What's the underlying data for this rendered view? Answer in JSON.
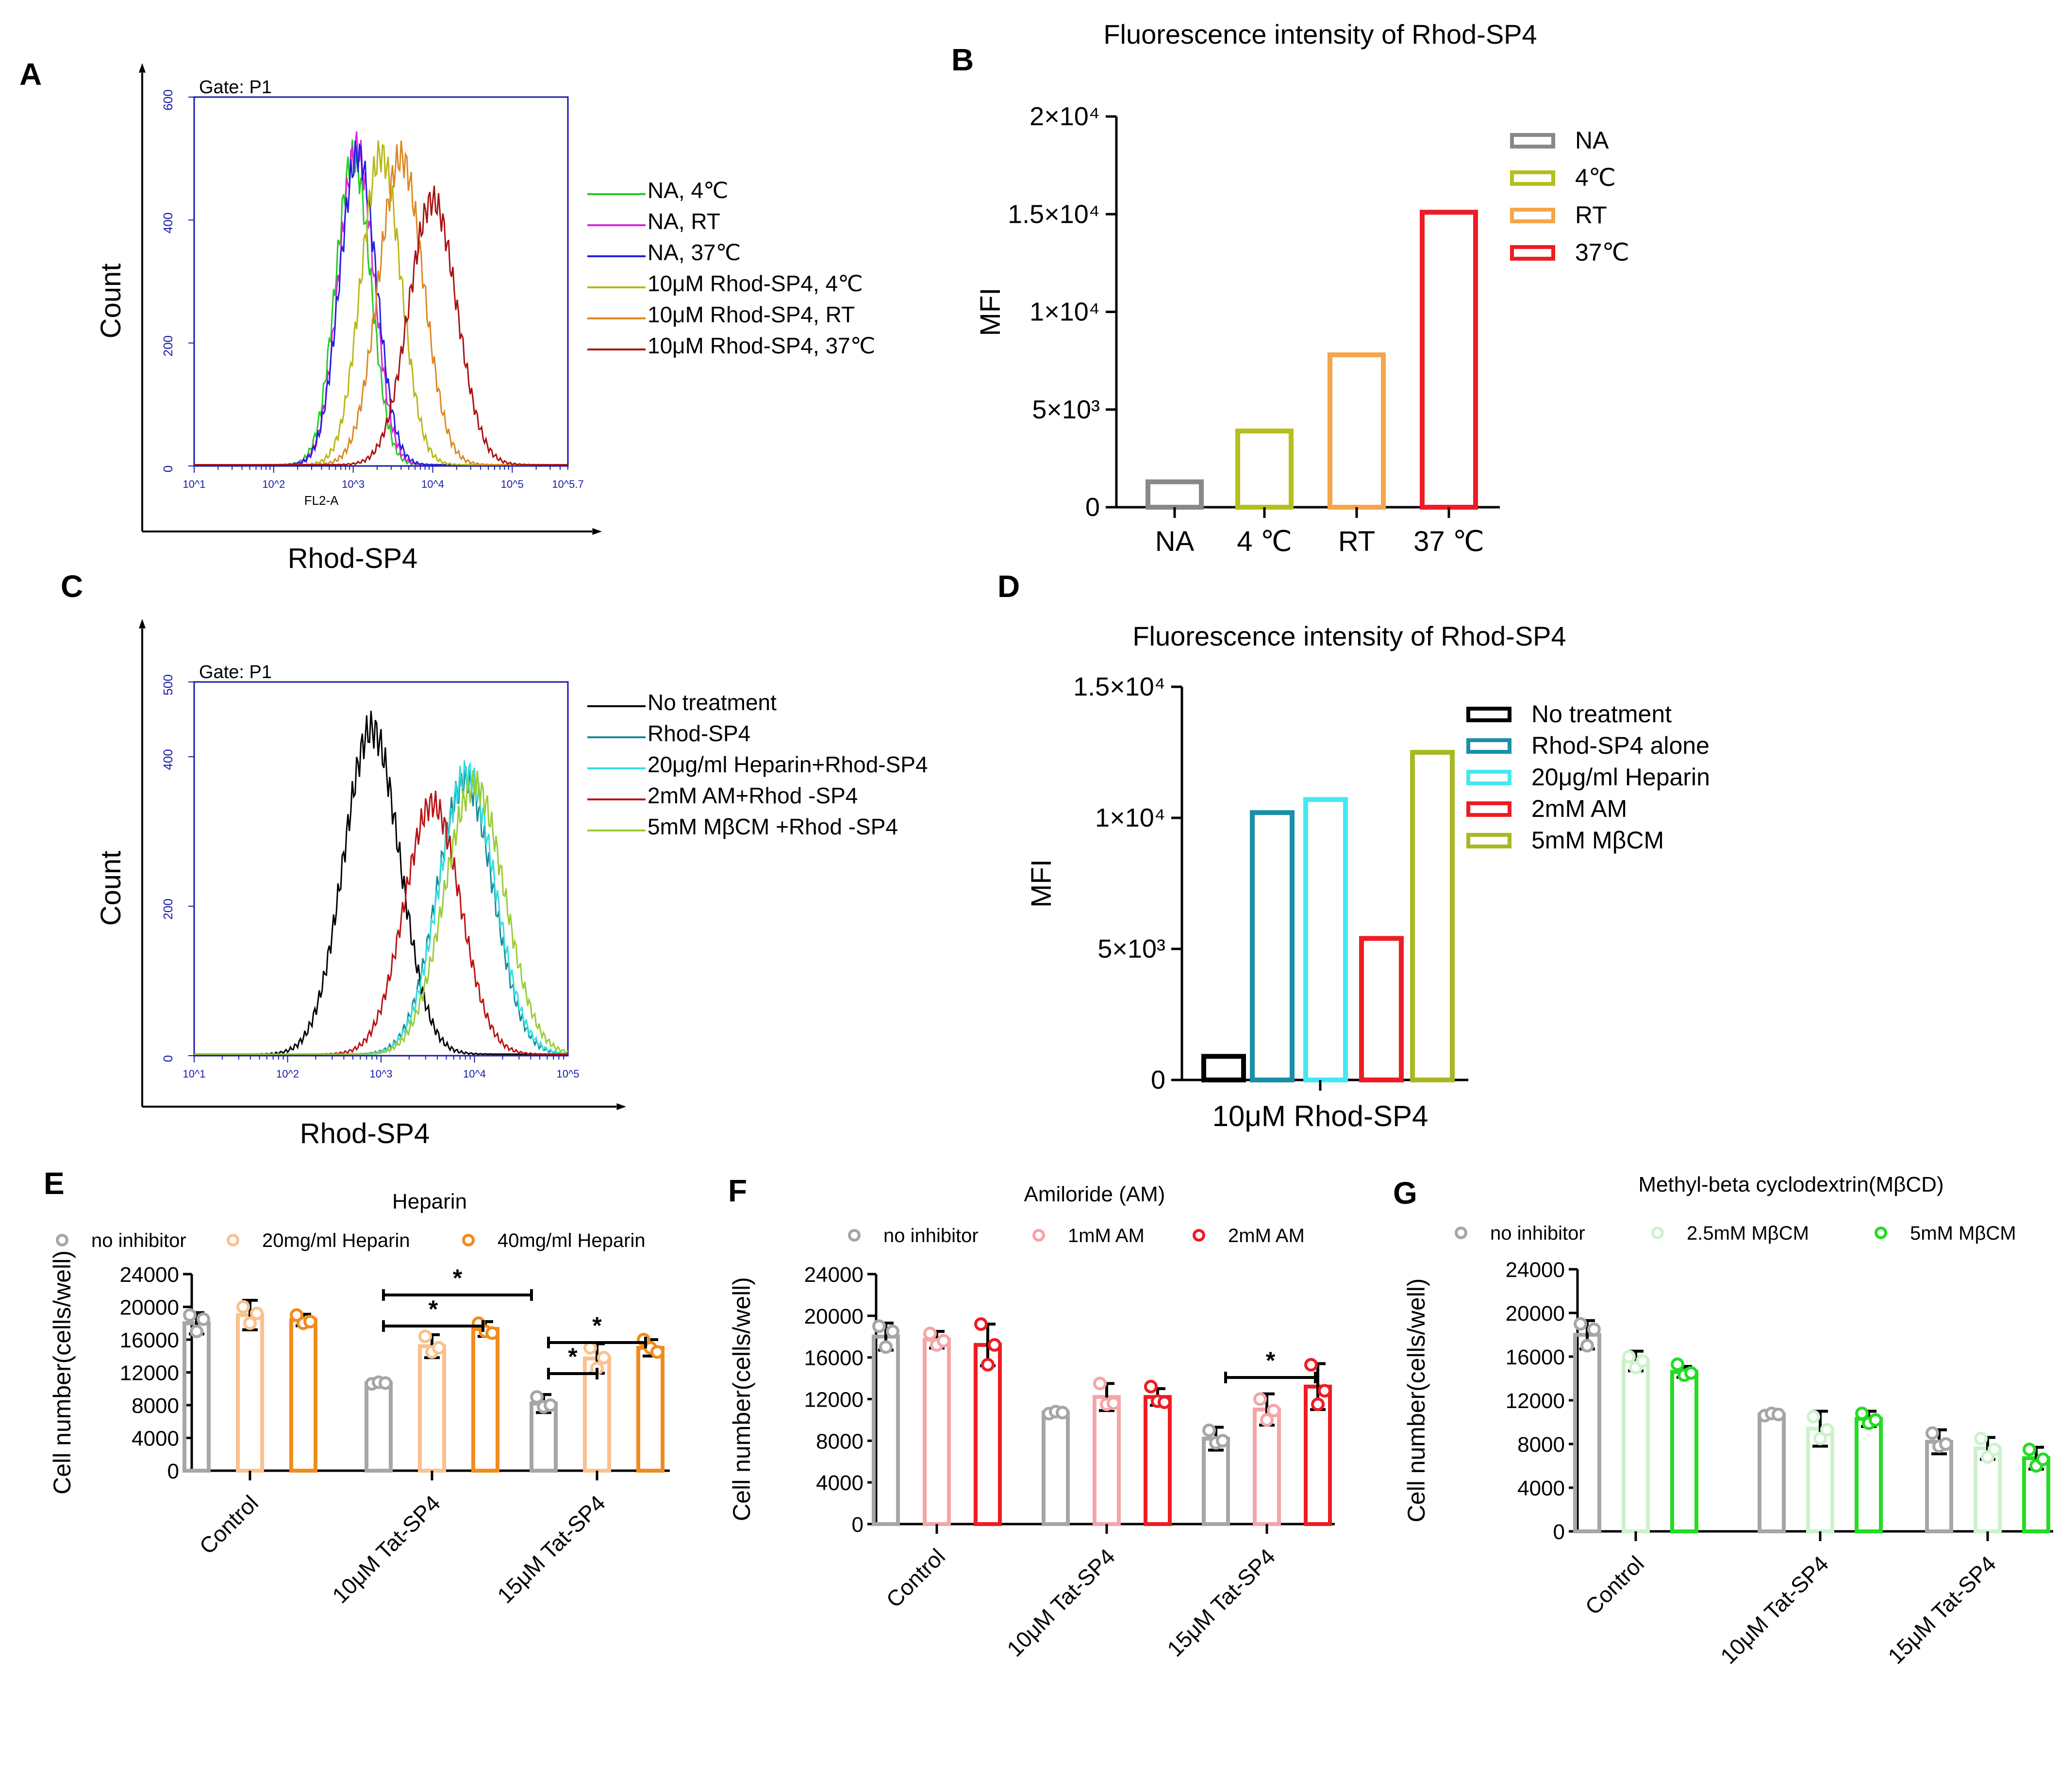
{
  "figure": {
    "panels": [
      {
        "letter": "A",
        "title": ""
      },
      {
        "letter": "B",
        "title": "Fluorescence intensity of Rhod-SP4"
      },
      {
        "letter": "C",
        "title": ""
      },
      {
        "letter": "D",
        "title": "Fluorescence intensity of Rhod-SP4"
      },
      {
        "letter": "E",
        "title": "Heparin"
      },
      {
        "letter": "F",
        "title": "Amiloride (AM)"
      },
      {
        "letter": "G",
        "title": "Methyl-beta cyclodextrin(MβCD)"
      }
    ]
  },
  "chart_data": [
    {
      "id": "A",
      "type": "line",
      "title": "",
      "gate_label": "Gate: P1",
      "xlabel": "Rhod-SP4",
      "xlabel_inner": "FL2-A",
      "ylabel": "Count",
      "x_scale": "log",
      "x_ticks": [
        "10^1",
        "10^2",
        "10^3",
        "10^4",
        "10^5",
        "10^5.7"
      ],
      "y_ticks": [
        "0",
        "200",
        "400",
        "600"
      ],
      "ylim": [
        0,
        600
      ],
      "xlim_log10": [
        1,
        5.7
      ],
      "series": [
        {
          "name": "NA, 4℃",
          "color": "#22cc22",
          "peak_log10": 3.0,
          "peak_count": 500,
          "width": 0.22
        },
        {
          "name": "NA, RT",
          "color": "#dd22dd",
          "peak_log10": 3.04,
          "peak_count": 515,
          "width": 0.22
        },
        {
          "name": "NA, 37℃",
          "color": "#2222dd",
          "peak_log10": 3.06,
          "peak_count": 505,
          "width": 0.23
        },
        {
          "name": "10μM Rhod-SP4, 4℃",
          "color": "#b8b814",
          "peak_log10": 3.35,
          "peak_count": 505,
          "width": 0.25
        },
        {
          "name": "10μM Rhod-SP4, RT",
          "color": "#dd8822",
          "peak_log10": 3.6,
          "peak_count": 500,
          "width": 0.28
        },
        {
          "name": "10μM Rhod-SP4, 37℃",
          "color": "#aa1111",
          "peak_log10": 4.0,
          "peak_count": 430,
          "width": 0.3
        }
      ]
    },
    {
      "id": "B",
      "type": "bar",
      "title": "Fluorescence intensity of Rhod-SP4",
      "xlabel": "",
      "ylabel": "MFI",
      "ylim": [
        0,
        20000
      ],
      "y_ticks": [
        "0",
        "5×10³",
        "1×10⁴",
        "1.5×10⁴",
        "2×10⁴"
      ],
      "categories": [
        "NA",
        "4 ℃",
        "RT",
        "37 ℃"
      ],
      "legend": [
        "NA",
        "4℃",
        "RT",
        "37℃"
      ],
      "colors": [
        "#888888",
        "#b5bf1e",
        "#f5a54a",
        "#ee1c24"
      ],
      "values": [
        1300,
        3900,
        7800,
        15100
      ]
    },
    {
      "id": "C",
      "type": "line",
      "title": "",
      "gate_label": "Gate: P1",
      "xlabel": "Rhod-SP4",
      "ylabel": "Count",
      "x_scale": "log",
      "x_ticks": [
        "10^1",
        "10^2",
        "10^3",
        "10^4",
        "10^5"
      ],
      "y_ticks": [
        "0",
        "200",
        "400",
        "500"
      ],
      "ylim": [
        0,
        500
      ],
      "xlim_log10": [
        1,
        5
      ],
      "series": [
        {
          "name": "No treatment",
          "color": "#000000",
          "peak_log10": 2.9,
          "peak_count": 435,
          "width": 0.3
        },
        {
          "name": "Rhod-SP4",
          "color": "#1a8a99",
          "peak_log10": 3.9,
          "peak_count": 365,
          "width": 0.3
        },
        {
          "name": "20μg/ml Heparin+Rhod-SP4",
          "color": "#33dddd",
          "peak_log10": 3.92,
          "peak_count": 375,
          "width": 0.3
        },
        {
          "name": "2mM AM+Rhod -SP4",
          "color": "#bb1111",
          "peak_log10": 3.55,
          "peak_count": 335,
          "width": 0.3
        },
        {
          "name": "5mM MβCM +Rhod -SP4",
          "color": "#99cc33",
          "peak_log10": 4.0,
          "peak_count": 360,
          "width": 0.32
        }
      ]
    },
    {
      "id": "D",
      "type": "bar",
      "title": "Fluorescence intensity of Rhod-SP4",
      "xlabel": "10μM Rhod-SP4",
      "ylabel": "MFI",
      "ylim": [
        0,
        15000
      ],
      "y_ticks": [
        "0",
        "5×10³",
        "1×10⁴",
        "1.5×10⁴"
      ],
      "categories": [
        "No treatment",
        "Rhod-SP4 alone",
        "20μg/ml Heparin",
        "2mM AM",
        "5mM MβCM"
      ],
      "colors": [
        "#000000",
        "#1a8fa8",
        "#44e8f2",
        "#ee1c24",
        "#a7b824"
      ],
      "values": [
        900,
        10200,
        10700,
        5400,
        12500
      ]
    },
    {
      "id": "E",
      "type": "bar",
      "title": "Heparin",
      "ylabel": "Cell number(cells/well)",
      "ylim": [
        0,
        24000
      ],
      "y_ticks": [
        "0",
        "4000",
        "8000",
        "12000",
        "16000",
        "20000",
        "24000"
      ],
      "categories": [
        "Control",
        "10μM Tat-SP4",
        "15μM Tat-SP4"
      ],
      "series": [
        {
          "name": "no inhibitor",
          "color": "#a6a6a6",
          "values": [
            18000,
            10700,
            8200
          ],
          "sd": [
            1300,
            300,
            1100
          ],
          "points": [
            [
              19000,
              17000,
              18500
            ],
            [
              10600,
              10800,
              10700
            ],
            [
              9000,
              7800,
              8000
            ]
          ]
        },
        {
          "name": "20mg/ml Heparin",
          "color": "#f9c28e",
          "values": [
            19000,
            15200,
            13700
          ],
          "sd": [
            1800,
            1400,
            1800
          ],
          "points": [
            [
              20000,
              18000,
              19200
            ],
            [
              16400,
              14500,
              15000
            ],
            [
              15000,
              12500,
              13800
            ]
          ]
        },
        {
          "name": "40mg/ml Heparin",
          "color": "#f08c1e",
          "values": [
            18400,
            17300,
            15000
          ],
          "sd": [
            700,
            900,
            1000
          ],
          "points": [
            [
              19000,
              18000,
              18200
            ],
            [
              18000,
              17000,
              16800
            ],
            [
              16000,
              15000,
              14500
            ]
          ]
        }
      ],
      "annotations": [
        "*",
        "*",
        "*",
        "*"
      ]
    },
    {
      "id": "F",
      "type": "bar",
      "title": "Amiloride (AM)",
      "ylabel": "Cell number(cells/well)",
      "ylim": [
        0,
        24000
      ],
      "y_ticks": [
        "0",
        "4000",
        "8000",
        "12000",
        "16000",
        "20000",
        "24000"
      ],
      "categories": [
        "Control",
        "10μM Tat-SP4",
        "15μM Tat-SP4"
      ],
      "series": [
        {
          "name": "no inhibitor",
          "color": "#a6a6a6",
          "values": [
            18000,
            10700,
            8200
          ],
          "sd": [
            1300,
            300,
            1100
          ],
          "points": [
            [
              19000,
              17000,
              18500
            ],
            [
              10600,
              10800,
              10700
            ],
            [
              9000,
              7800,
              8000
            ]
          ]
        },
        {
          "name": "1mM AM",
          "color": "#f4a5a8",
          "values": [
            17700,
            12200,
            11000
          ],
          "sd": [
            800,
            1300,
            1500
          ],
          "points": [
            [
              18300,
              17200,
              17600
            ],
            [
              13500,
              11500,
              11600
            ],
            [
              12000,
              10000,
              10900
            ]
          ]
        },
        {
          "name": "2mM AM",
          "color": "#ee1c24",
          "values": [
            17200,
            12200,
            13200
          ],
          "sd": [
            2000,
            800,
            2200
          ],
          "points": [
            [
              19200,
              15300,
              17200
            ],
            [
              13200,
              11800,
              11700
            ],
            [
              15300,
              11500,
              12800
            ]
          ]
        }
      ],
      "annotations": [
        "*"
      ]
    },
    {
      "id": "G",
      "type": "bar",
      "title": "Methyl-beta cyclodextrin(MβCD)",
      "ylabel": "Cell number(cells/well)",
      "ylim": [
        0,
        24000
      ],
      "y_ticks": [
        "0",
        "4000",
        "8000",
        "12000",
        "16000",
        "20000",
        "24000"
      ],
      "categories": [
        "Control",
        "10μM Tat-SP4",
        "15μM Tat-SP4"
      ],
      "series": [
        {
          "name": "no inhibitor",
          "color": "#a6a6a6",
          "values": [
            18000,
            10700,
            8200
          ],
          "sd": [
            1300,
            300,
            1100
          ],
          "points": [
            [
              19000,
              17000,
              18500
            ],
            [
              10600,
              10800,
              10700
            ],
            [
              9000,
              7800,
              8000
            ]
          ]
        },
        {
          "name": "2.5mM MβCM",
          "color": "#ccf2cc",
          "values": [
            15600,
            9400,
            7600
          ],
          "sd": [
            900,
            1600,
            1000
          ],
          "points": [
            [
              16000,
              15000,
              15600
            ],
            [
              10500,
              8500,
              9300
            ],
            [
              8500,
              6800,
              7500
            ]
          ]
        },
        {
          "name": "5mM MβCM",
          "color": "#22dd22",
          "values": [
            14600,
            10300,
            6700
          ],
          "sd": [
            500,
            700,
            1000
          ],
          "points": [
            [
              15300,
              14300,
              14500
            ],
            [
              10800,
              9900,
              10200
            ],
            [
              7500,
              6000,
              6600
            ]
          ]
        }
      ],
      "annotations": []
    }
  ]
}
